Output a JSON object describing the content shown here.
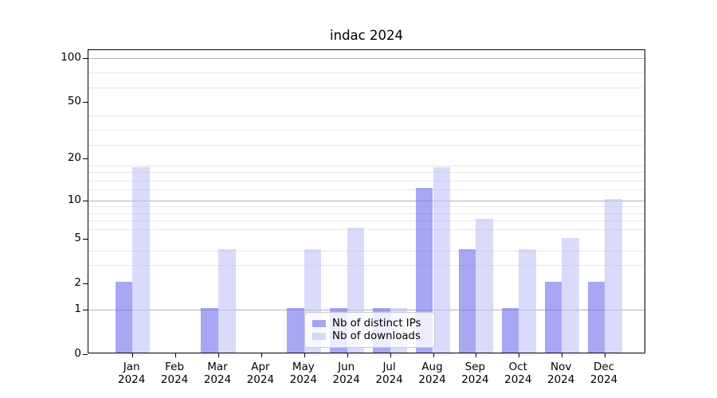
{
  "chart_data": {
    "type": "bar",
    "title": "indac 2024",
    "categories": [
      "Jan",
      "Feb",
      "Mar",
      "Apr",
      "May",
      "Jun",
      "Jul",
      "Aug",
      "Sep",
      "Oct",
      "Nov",
      "Dec"
    ],
    "x_year": "2024",
    "series": [
      {
        "name": "Nb of distinct IPs",
        "color": "#6c6ced",
        "alpha": 0.6,
        "values": [
          2,
          0,
          1,
          0,
          1,
          1,
          1,
          12,
          4,
          1,
          2,
          2
        ]
      },
      {
        "name": "Nb of downloads",
        "color": "#c1c1f7",
        "alpha": 0.6,
        "values": [
          17,
          0,
          4,
          0,
          4,
          6,
          1,
          17,
          7,
          4,
          5,
          10
        ]
      }
    ],
    "y_ticks": [
      0,
      1,
      2,
      5,
      10,
      20,
      50,
      100
    ],
    "y_scale": "log10(1+v)",
    "ylim": [
      0,
      113
    ],
    "grid": "horizontal",
    "major_grid_values": [
      1,
      10,
      100
    ],
    "minor_grid_values": [
      3,
      4,
      6,
      7,
      8,
      9,
      12,
      14,
      16,
      18,
      25,
      32,
      40,
      63,
      80
    ],
    "legend_position": "lower-center inside axes",
    "colors": {
      "major_grid": "#b2b2b2",
      "minor_grid": "#e7e7e7",
      "spine": "#000000",
      "background": "#ffffff"
    }
  }
}
